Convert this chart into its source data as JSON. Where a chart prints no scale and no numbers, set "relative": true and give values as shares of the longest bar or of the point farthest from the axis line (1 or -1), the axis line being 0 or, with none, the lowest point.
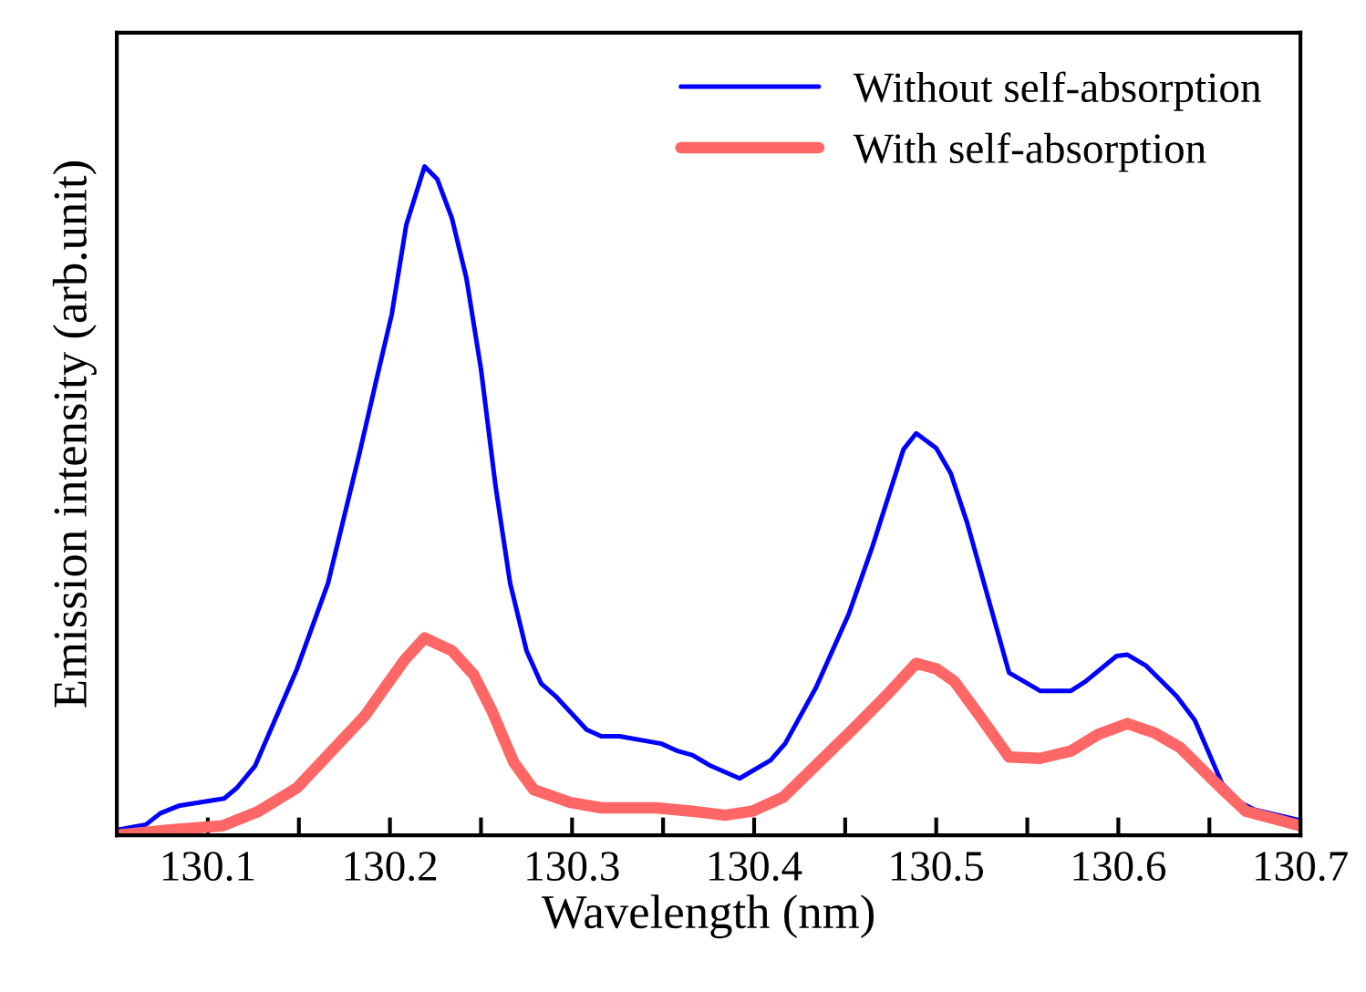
{
  "chart_data": {
    "type": "line",
    "xlabel": "Wavelength (nm)",
    "ylabel": "Emission intensity (arb.unit)",
    "relative": true,
    "xlim": [
      130.05,
      130.7
    ],
    "xticks": [
      130.1,
      {
        "value": 130.15,
        "label": null
      },
      130.2,
      {
        "value": 130.25,
        "label": null
      },
      130.3,
      {
        "value": 130.35,
        "label": null
      },
      130.4,
      {
        "value": 130.45,
        "label": null
      },
      130.5,
      {
        "value": 130.55,
        "label": null
      },
      130.6,
      {
        "value": 130.65,
        "label": null
      },
      130.7
    ],
    "legend": "top right",
    "grid": false,
    "series": [
      {
        "name": "Without self-absorption",
        "color": "#0000ff",
        "x": [
          130.05,
          130.066,
          130.074,
          130.084,
          130.109,
          130.116,
          130.126,
          130.149,
          130.166,
          130.183,
          130.193,
          130.201,
          130.209,
          130.219,
          130.226,
          130.234,
          130.242,
          130.25,
          130.258,
          130.266,
          130.275,
          130.283,
          130.291,
          130.308,
          130.316,
          130.326,
          130.349,
          130.358,
          130.366,
          130.376,
          130.392,
          130.409,
          130.417,
          130.434,
          130.452,
          130.465,
          130.482,
          130.489,
          130.5,
          130.508,
          130.517,
          130.54,
          130.557,
          130.574,
          130.582,
          130.599,
          130.605,
          130.615,
          130.632,
          130.642,
          130.657,
          130.667,
          130.675,
          130.7
        ],
        "values": [
          0.008,
          0.016,
          0.033,
          0.044,
          0.055,
          0.071,
          0.104,
          0.249,
          0.377,
          0.568,
          0.686,
          0.779,
          0.913,
          1,
          0.981,
          0.923,
          0.833,
          0.697,
          0.522,
          0.377,
          0.276,
          0.227,
          0.208,
          0.158,
          0.148,
          0.148,
          0.137,
          0.126,
          0.12,
          0.104,
          0.085,
          0.112,
          0.137,
          0.221,
          0.331,
          0.432,
          0.577,
          0.601,
          0.579,
          0.541,
          0.467,
          0.243,
          0.216,
          0.216,
          0.23,
          0.268,
          0.27,
          0.254,
          0.208,
          0.172,
          0.077,
          0.049,
          0.038,
          0.022
        ]
      },
      {
        "name": "With self-absorption",
        "color": "#ff6666",
        "x": [
          130.05,
          130.079,
          130.108,
          130.128,
          130.149,
          130.186,
          130.208,
          130.219,
          130.234,
          130.246,
          130.256,
          130.268,
          130.279,
          130.299,
          130.316,
          130.346,
          130.366,
          130.384,
          130.399,
          130.416,
          130.454,
          130.474,
          130.489,
          130.5,
          130.51,
          130.524,
          130.54,
          130.557,
          130.574,
          130.589,
          130.605,
          130.62,
          130.634,
          130.654,
          130.67,
          130.7
        ],
        "values": [
          0,
          0.008,
          0.014,
          0.036,
          0.071,
          0.178,
          0.262,
          0.295,
          0.276,
          0.24,
          0.186,
          0.109,
          0.068,
          0.049,
          0.041,
          0.041,
          0.036,
          0.03,
          0.036,
          0.057,
          0.158,
          0.213,
          0.257,
          0.249,
          0.23,
          0.178,
          0.117,
          0.115,
          0.126,
          0.151,
          0.167,
          0.153,
          0.131,
          0.077,
          0.036,
          0.014
        ]
      }
    ]
  }
}
